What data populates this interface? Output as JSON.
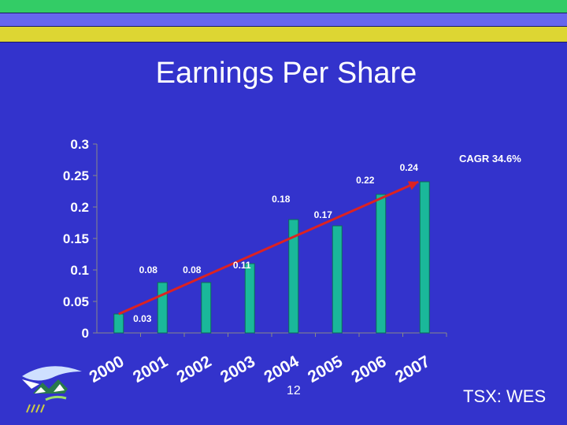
{
  "slide": {
    "title": "Earnings Per Share",
    "page_number": "12",
    "ticker": "TSX: WES",
    "colors": {
      "background": "#3333cc",
      "band_green": "#33cc66",
      "band_lavender": "#6666ee",
      "band_yellow": "#ddd633",
      "bar": "#1ab89a",
      "trend_line": "#dd2222"
    },
    "logo_icon": "company-logo-icon"
  },
  "chart_data": {
    "type": "bar",
    "title": "",
    "xlabel": "",
    "ylabel": "",
    "categories": [
      "2000",
      "2001",
      "2002",
      "2003",
      "2004",
      "2005",
      "2006",
      "2007"
    ],
    "values": [
      0.03,
      0.08,
      0.08,
      0.11,
      0.18,
      0.17,
      0.22,
      0.24
    ],
    "data_labels": [
      "0.03",
      "0.08",
      "0.08",
      "0.11",
      "0.18",
      "0.17",
      "0.22",
      "0.24"
    ],
    "ylim": [
      0,
      0.3
    ],
    "yticks": [
      "0",
      "0.05",
      "0.1",
      "0.15",
      "0.2",
      "0.25",
      "0.3"
    ],
    "grid": false,
    "legend": "none",
    "annotation": "CAGR 34.6%",
    "trend_line": {
      "from_category": "2000",
      "from_value": 0.03,
      "to_category": "2007",
      "to_value": 0.24,
      "arrow": true
    }
  }
}
